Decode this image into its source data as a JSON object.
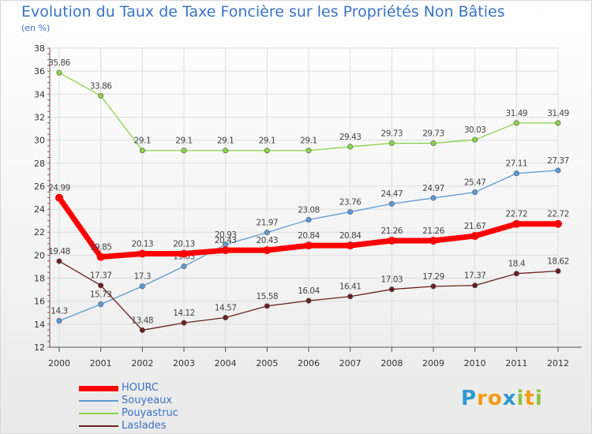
{
  "chart_data": {
    "type": "line",
    "title": "Evolution du Taux de Taxe Foncière sur les Propriétés Non Bâties",
    "subtitle": "(en %)",
    "categories": [
      "2000",
      "2001",
      "2002",
      "2003",
      "2004",
      "2005",
      "2006",
      "2007",
      "2008",
      "2009",
      "2010",
      "2011",
      "2012"
    ],
    "ylim": [
      12,
      38
    ],
    "yticks": [
      12,
      14,
      16,
      18,
      20,
      22,
      24,
      26,
      28,
      30,
      32,
      34,
      36,
      38
    ],
    "grid": true,
    "legend_placement": "bottom-left",
    "series": [
      {
        "name": "HOURC",
        "color": "#ff0000",
        "values": [
          24.99,
          19.85,
          20.13,
          20.13,
          20.43,
          20.43,
          20.84,
          20.84,
          21.26,
          21.26,
          21.67,
          22.72,
          22.72
        ]
      },
      {
        "name": "Souyeaux",
        "color": "#5b9bd5",
        "values": [
          14.3,
          15.73,
          17.3,
          19.03,
          20.93,
          21.97,
          23.08,
          23.76,
          24.47,
          24.97,
          25.47,
          27.11,
          27.37
        ]
      },
      {
        "name": "Pouyastruc",
        "color": "#8cd24a",
        "values": [
          35.86,
          33.86,
          29.1,
          29.1,
          29.1,
          29.1,
          29.1,
          29.43,
          29.73,
          29.73,
          30.03,
          31.49,
          31.49
        ]
      },
      {
        "name": "Laslades",
        "color": "#6b1f1f",
        "values": [
          19.48,
          17.37,
          13.48,
          14.12,
          14.57,
          15.58,
          16.04,
          16.41,
          17.03,
          17.29,
          17.37,
          18.4,
          18.62
        ]
      }
    ]
  },
  "branding": {
    "logo_letters": [
      "P",
      "r",
      "o",
      "x",
      "i",
      "t",
      "i"
    ],
    "logo_colors": [
      "#2e9ad0",
      "#f39c12",
      "#f39c12",
      "#2e9ad0",
      "#8cc63f",
      "#f39c12",
      "#8cc63f"
    ]
  }
}
